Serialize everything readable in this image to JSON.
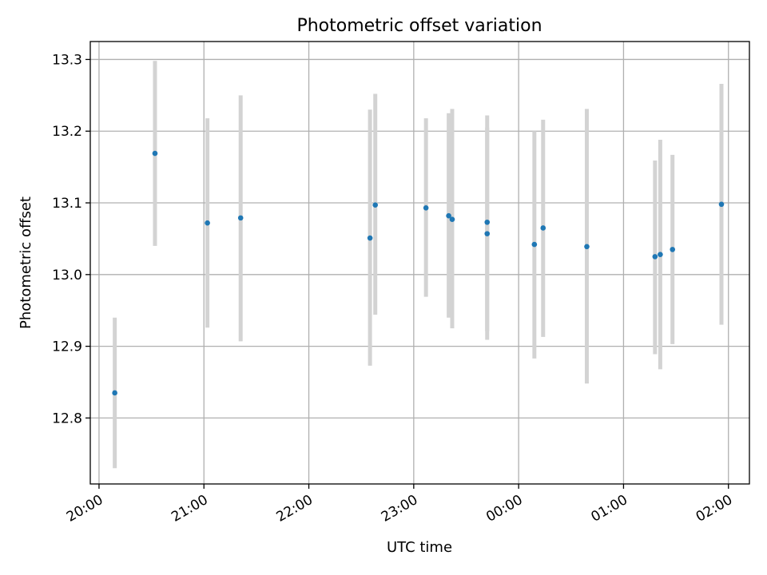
{
  "chart_data": {
    "type": "scatter",
    "title": "Photometric offset variation",
    "xlabel": "UTC time",
    "ylabel": "Photometric offset",
    "x_axis_type": "time",
    "xlim": [
      "19:55",
      "02:12"
    ],
    "ylim": [
      12.708,
      13.325
    ],
    "grid": true,
    "x_ticks": [
      "20:00",
      "21:00",
      "22:00",
      "23:00",
      "00:00",
      "01:00",
      "02:00"
    ],
    "y_ticks": [
      "12.8",
      "12.9",
      "13.0",
      "13.1",
      "13.2",
      "13.3"
    ],
    "colors": {
      "points": "#1f77b4",
      "error_bars": "#d3d3d3"
    },
    "series": [
      {
        "points": [
          {
            "x": "20:09",
            "y": 12.835,
            "err_low": 12.73,
            "err_high": 12.94
          },
          {
            "x": "20:32",
            "y": 13.169,
            "err_low": 13.04,
            "err_high": 13.298
          },
          {
            "x": "21:02",
            "y": 13.072,
            "err_low": 12.926,
            "err_high": 13.218
          },
          {
            "x": "21:21",
            "y": 13.079,
            "err_low": 12.907,
            "err_high": 13.25
          },
          {
            "x": "22:35",
            "y": 13.051,
            "err_low": 12.873,
            "err_high": 13.23
          },
          {
            "x": "22:38",
            "y": 13.097,
            "err_low": 12.944,
            "err_high": 13.252
          },
          {
            "x": "23:07",
            "y": 13.093,
            "err_low": 12.969,
            "err_high": 13.218
          },
          {
            "x": "23:20",
            "y": 13.082,
            "err_low": 12.94,
            "err_high": 13.225
          },
          {
            "x": "23:22",
            "y": 13.077,
            "err_low": 12.925,
            "err_high": 13.231
          },
          {
            "x": "23:42",
            "y": 13.073,
            "err_low": 12.921,
            "err_high": 13.222
          },
          {
            "x": "23:42",
            "y": 13.057,
            "err_low": 12.909,
            "err_high": 13.205
          },
          {
            "x": "00:09",
            "y": 13.042,
            "err_low": 12.883,
            "err_high": 13.2
          },
          {
            "x": "00:14",
            "y": 13.065,
            "err_low": 12.913,
            "err_high": 13.216
          },
          {
            "x": "00:39",
            "y": 13.039,
            "err_low": 12.848,
            "err_high": 13.231
          },
          {
            "x": "01:18",
            "y": 13.025,
            "err_low": 12.889,
            "err_high": 13.159
          },
          {
            "x": "01:21",
            "y": 13.028,
            "err_low": 12.868,
            "err_high": 13.188
          },
          {
            "x": "01:28",
            "y": 13.035,
            "err_low": 12.903,
            "err_high": 13.167
          },
          {
            "x": "01:56",
            "y": 13.098,
            "err_low": 12.93,
            "err_high": 13.266
          }
        ]
      }
    ]
  }
}
